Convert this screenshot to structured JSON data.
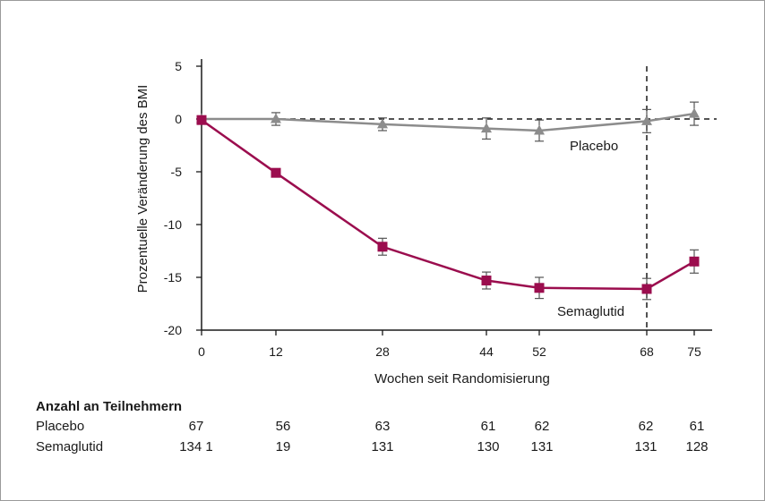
{
  "chart_data": {
    "type": "line",
    "xlabel": "Wochen seit Randomisierung",
    "ylabel": "Prozentuelle Veränderung des BMI",
    "x": [
      0,
      12,
      28,
      44,
      52,
      68,
      75
    ],
    "x_ticks": [
      "0",
      "12",
      "28",
      "44",
      "52",
      "68",
      "75"
    ],
    "y_ticks": [
      "5",
      "0",
      "-5",
      "-10",
      "-15",
      "-20"
    ],
    "ylim": [
      -20,
      5
    ],
    "reference_line_y": 0,
    "reference_line_x": 68,
    "grid": false,
    "series": [
      {
        "name": "Placebo",
        "color": "#8c8c8c",
        "marker": "triangle",
        "values": [
          0.0,
          0.0,
          -0.5,
          -0.9,
          -1.1,
          -0.2,
          0.5
        ],
        "error": [
          0.0,
          0.6,
          0.6,
          1.0,
          1.0,
          1.1,
          1.1
        ]
      },
      {
        "name": "Semaglutid",
        "color": "#9b0d4e",
        "marker": "square",
        "values": [
          -0.1,
          -5.1,
          -12.1,
          -15.3,
          -16.0,
          -16.1,
          -13.5
        ],
        "error": [
          0.0,
          0.0,
          0.8,
          0.8,
          1.0,
          1.0,
          1.1
        ]
      }
    ]
  },
  "participants_table": {
    "title": "Anzahl an Teilnehmern",
    "rows": [
      {
        "label": "Placebo",
        "values": [
          "67",
          "56",
          "63",
          "61",
          "62",
          "62",
          "61"
        ]
      },
      {
        "label": "Semaglutid",
        "values": [
          "134 1",
          "19",
          "131",
          "130",
          "131",
          "131",
          "128"
        ]
      }
    ]
  }
}
